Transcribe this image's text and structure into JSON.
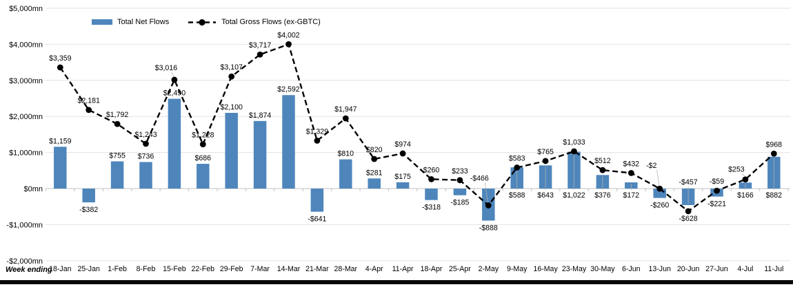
{
  "chart_data": {
    "type": "combo-bar-line",
    "title": "",
    "legend_position": "top",
    "grid": true,
    "x_axis": {
      "title": "Week ending"
    },
    "y_axis": {
      "min": -2000,
      "max": 5000,
      "step": 1000,
      "unit": "mn",
      "tick_labels": [
        "$5,000mn",
        "$4,000mn",
        "$3,000mn",
        "$2,000mn",
        "$1,000mn",
        "$0mn",
        "-$1,000mn",
        "-$2,000mn"
      ]
    },
    "categories": [
      "18-Jan",
      "25-Jan",
      "1-Feb",
      "8-Feb",
      "15-Feb",
      "22-Feb",
      "29-Feb",
      "7-Mar",
      "14-Mar",
      "21-Mar",
      "28-Mar",
      "4-Apr",
      "11-Apr",
      "18-Apr",
      "25-Apr",
      "2-May",
      "9-May",
      "16-May",
      "23-May",
      "30-May",
      "6-Jun",
      "13-Jun",
      "20-Jun",
      "27-Jun",
      "4-Jul",
      "11-Jul"
    ],
    "series": [
      {
        "name": "Total Net Flows",
        "type": "bar",
        "color": "#4e86bc",
        "values": [
          1159,
          -382,
          755,
          736,
          2490,
          686,
          2100,
          1874,
          2592,
          -641,
          810,
          281,
          175,
          -318,
          -185,
          -888,
          588,
          643,
          1022,
          376,
          172,
          -260,
          -457,
          -221,
          166,
          882
        ],
        "labels": [
          "$1,159",
          "-$382",
          "$755",
          "$736",
          "$2,490",
          "$686",
          "$2,100",
          "$1,874",
          "$2,592",
          "-$641",
          "$810",
          "$281",
          "$175",
          "-$318",
          "-$185",
          "-$888",
          "$588",
          "$643",
          "$1,022",
          "$376",
          "$172",
          "-$260",
          "-$457",
          "-$221",
          "$166",
          "$882"
        ]
      },
      {
        "name": "Total Gross Flows (ex-GBTC)",
        "type": "line",
        "color": "#000000",
        "marker": "circle",
        "line_style": "dashed",
        "values": [
          3359,
          2181,
          1792,
          1243,
          3016,
          1228,
          3107,
          3717,
          4002,
          1329,
          1947,
          820,
          974,
          260,
          233,
          -466,
          583,
          765,
          1033,
          512,
          432,
          -2,
          -628,
          -59,
          253,
          968
        ],
        "labels": [
          "$3,359",
          "$2,181",
          "$1,792",
          "$1,243",
          "$3,016",
          "$1,228",
          "$3,107",
          "$3,717",
          "$4,002",
          "$1,329",
          "$1,947",
          "$820",
          "$974",
          "$260",
          "$233",
          "-$466",
          "$583",
          "$765",
          "$1,033",
          "$512",
          "$432",
          "-$2",
          "-$628",
          "-$59",
          "$253",
          "$968"
        ]
      }
    ]
  }
}
